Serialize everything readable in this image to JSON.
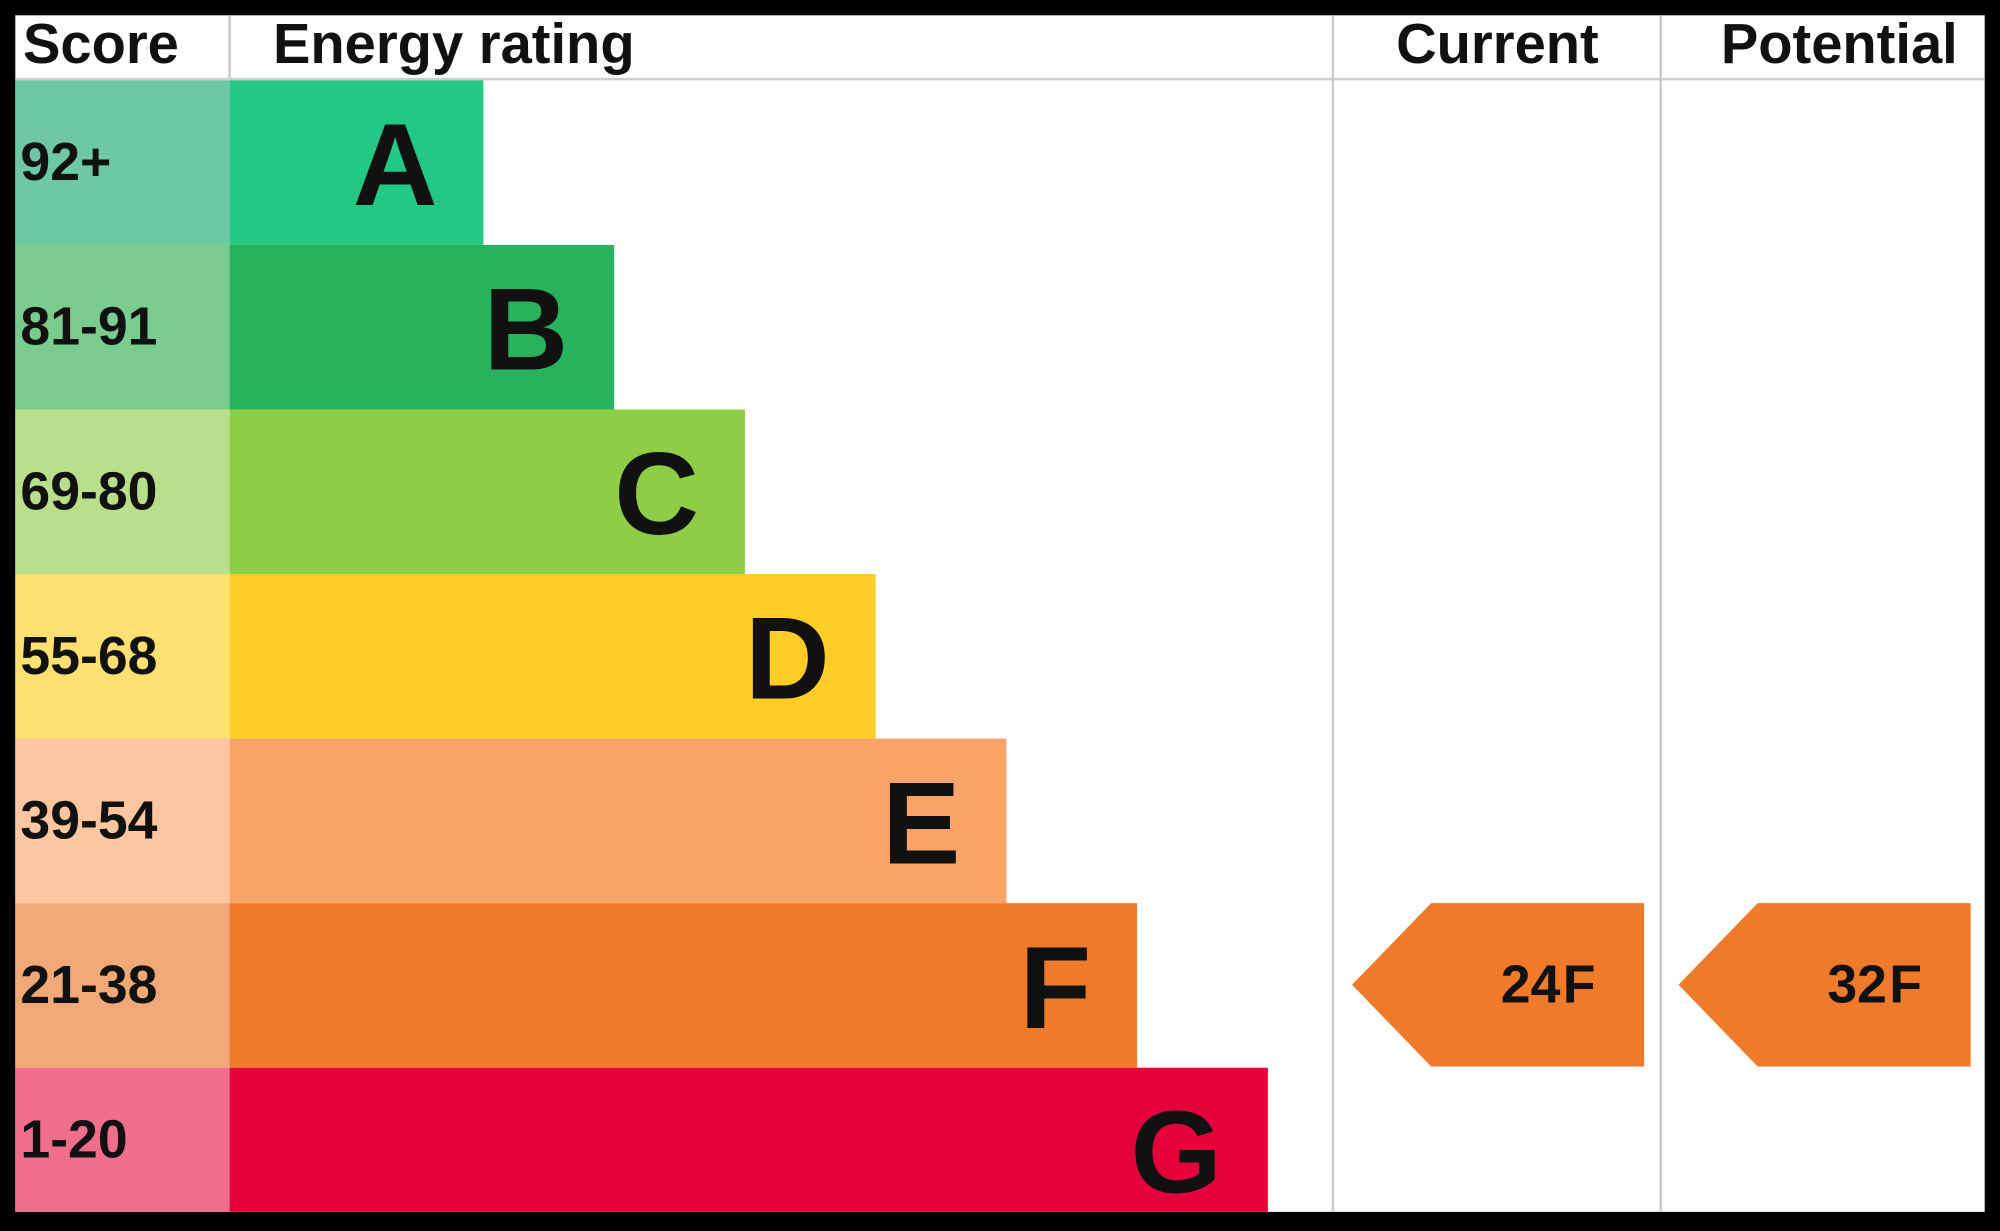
{
  "header": {
    "score": "Score",
    "rating": "Energy rating",
    "current": "Current",
    "potential": "Potential"
  },
  "bands": [
    {
      "score": "92+",
      "letter": "A",
      "color": "#23c884",
      "score_color": "#6ec8a4"
    },
    {
      "score": "81-91",
      "letter": "B",
      "color": "#27b25e",
      "score_color": "#79cb8e"
    },
    {
      "score": "69-80",
      "letter": "C",
      "color": "#8dce46",
      "score_color": "#b9df8c"
    },
    {
      "score": "55-68",
      "letter": "D",
      "color": "#ffcd25",
      "score_color": "#ffe070"
    },
    {
      "score": "39-54",
      "letter": "E",
      "color": "#f8a468",
      "score_color": "#fbc6a0"
    },
    {
      "score": "21-38",
      "letter": "F",
      "color": "#ef7a2a",
      "score_color": "#f0a877"
    },
    {
      "score": "1-20",
      "letter": "G",
      "color": "#e4003a",
      "score_color": "#ef6f8a"
    }
  ],
  "current": {
    "score": 24,
    "rating": "F"
  },
  "potential": {
    "score": 32,
    "rating": "F"
  }
}
